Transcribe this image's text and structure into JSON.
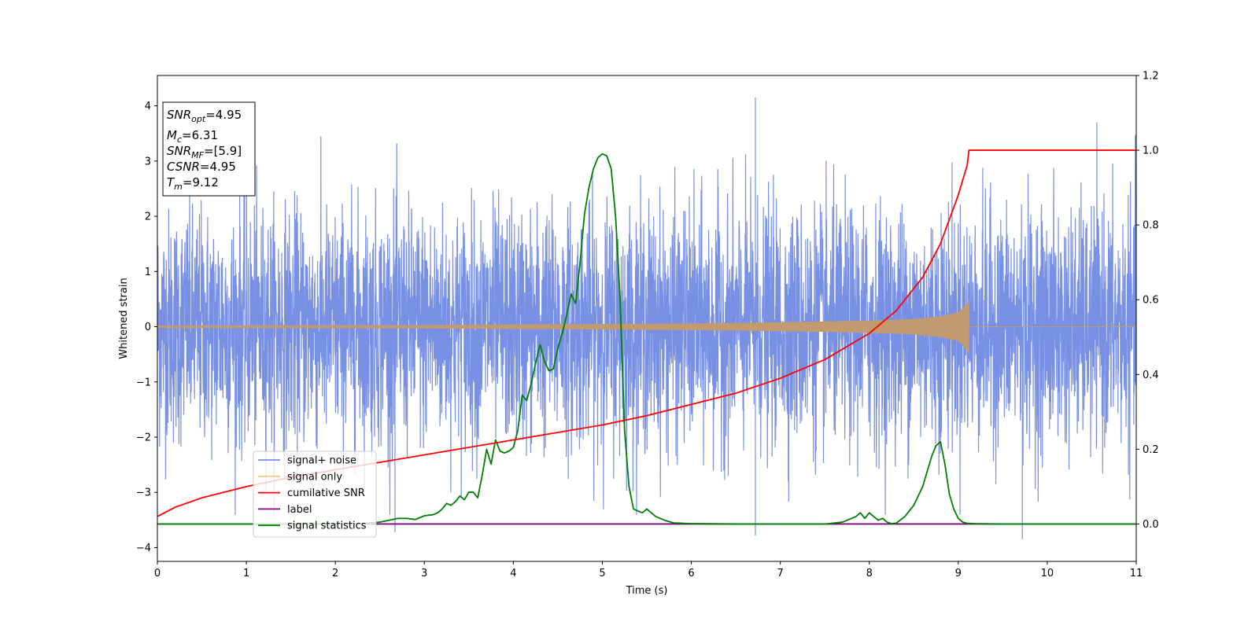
{
  "chart_data": {
    "type": "line",
    "xlabel": "Time (s)",
    "ylabel": "Whitened strain",
    "xlim": [
      0,
      11
    ],
    "ylim_left": [
      -4.25,
      4.55
    ],
    "ylim_right": [
      -0.1,
      1.2
    ],
    "x_ticks": [
      0,
      1,
      2,
      3,
      4,
      5,
      6,
      7,
      8,
      9,
      10,
      11
    ],
    "y_ticks_left": [
      -4,
      -3,
      -2,
      -1,
      0,
      1,
      2,
      3,
      4
    ],
    "y_ticks_left_labels": [
      "−4",
      "−3",
      "−2",
      "−1",
      "0",
      "1",
      "2",
      "3",
      "4"
    ],
    "y_ticks_right": [
      0.0,
      0.2,
      0.4,
      0.6,
      0.8,
      1.0,
      1.2
    ],
    "y_ticks_right_labels": [
      "0.0",
      "0.2",
      "0.4",
      "0.6",
      "0.8",
      "1.0",
      "1.2"
    ],
    "info_box": {
      "snr_opt": {
        "base": "SNR",
        "sub": "opt",
        "value": "=4.95"
      },
      "mc": {
        "base": "M",
        "sub": "c",
        "value": "=6.31"
      },
      "snr_mf": {
        "base": "SNR",
        "sub": "MF",
        "value": "=[5.9]"
      },
      "csnr": {
        "base": "CSNR",
        "value": "=4.95"
      },
      "tm": {
        "base": "T",
        "sub": "m",
        "value": "=9.12"
      }
    },
    "legend": {
      "placement": "lower-left",
      "entries": [
        {
          "label": "signal+ noise",
          "color": "#7890e4"
        },
        {
          "label": "signal only",
          "color": "#f5c98a"
        },
        {
          "label": "cumilative SNR",
          "color": "#ff0000"
        },
        {
          "label": "label",
          "color": "#800080"
        },
        {
          "label": "signal statistics",
          "color": "#008000"
        }
      ]
    },
    "series": [
      {
        "name": "signal+ noise",
        "axis": "left",
        "color": "#7890e4",
        "description_points": "dense gaussian noise, std ~1, spikes up to ~4.15 and down to ~-3.85",
        "notable_extremes": [
          [
            6.72,
            4.15
          ],
          [
            9.72,
            -3.85
          ],
          [
            6.72,
            -3.78
          ],
          [
            2.67,
            -3.72
          ]
        ]
      },
      {
        "name": "signal only",
        "axis": "left",
        "color": "#f5c98a",
        "envelope": {
          "x": [
            0,
            3,
            5,
            6,
            7,
            8,
            8.5,
            8.8,
            9.0,
            9.1,
            9.12,
            11
          ],
          "amp": [
            0.02,
            0.03,
            0.05,
            0.06,
            0.08,
            0.11,
            0.14,
            0.19,
            0.26,
            0.42,
            0.5,
            0
          ]
        }
      },
      {
        "name": "cumilative SNR",
        "axis": "right",
        "color": "#ff0000",
        "x": [
          0,
          0.2,
          0.5,
          1,
          1.5,
          2,
          2.5,
          3,
          3.5,
          4,
          4.5,
          5,
          5.5,
          6,
          6.5,
          7,
          7.5,
          8,
          8.3,
          8.6,
          8.8,
          9.0,
          9.1,
          9.12,
          9.2,
          11
        ],
        "y": [
          0.02,
          0.045,
          0.07,
          0.1,
          0.125,
          0.145,
          0.165,
          0.185,
          0.205,
          0.225,
          0.245,
          0.265,
          0.29,
          0.32,
          0.35,
          0.39,
          0.44,
          0.51,
          0.57,
          0.66,
          0.75,
          0.88,
          0.96,
          1.0,
          1.0,
          1.0
        ]
      },
      {
        "name": "label",
        "axis": "right",
        "color": "#800080",
        "x": [
          0,
          11
        ],
        "y": [
          0,
          0
        ]
      },
      {
        "name": "signal statistics",
        "axis": "right",
        "color": "#008000",
        "x": [
          0,
          0.5,
          1,
          1.5,
          2,
          2.3,
          2.5,
          2.6,
          2.7,
          2.8,
          2.9,
          3.0,
          3.1,
          3.15,
          3.2,
          3.25,
          3.3,
          3.35,
          3.4,
          3.45,
          3.5,
          3.55,
          3.6,
          3.65,
          3.7,
          3.75,
          3.8,
          3.85,
          3.9,
          3.95,
          4.0,
          4.05,
          4.1,
          4.15,
          4.2,
          4.25,
          4.3,
          4.35,
          4.4,
          4.45,
          4.5,
          4.55,
          4.6,
          4.65,
          4.7,
          4.75,
          4.8,
          4.85,
          4.9,
          4.95,
          5.0,
          5.05,
          5.1,
          5.15,
          5.2,
          5.25,
          5.3,
          5.35,
          5.4,
          5.45,
          5.5,
          5.55,
          5.6,
          5.7,
          5.8,
          5.9,
          6.0,
          6.5,
          7.0,
          7.5,
          7.7,
          7.8,
          7.85,
          7.9,
          7.95,
          8.0,
          8.05,
          8.1,
          8.15,
          8.2,
          8.25,
          8.3,
          8.4,
          8.5,
          8.6,
          8.7,
          8.75,
          8.8,
          8.85,
          8.9,
          8.95,
          9.0,
          9.05,
          9.1,
          9.2,
          9.5,
          10,
          11
        ],
        "y": [
          0,
          0,
          0,
          0,
          0,
          0.001,
          0.005,
          0.01,
          0.015,
          0.015,
          0.012,
          0.022,
          0.025,
          0.03,
          0.04,
          0.055,
          0.05,
          0.06,
          0.075,
          0.065,
          0.085,
          0.085,
          0.07,
          0.13,
          0.2,
          0.16,
          0.225,
          0.195,
          0.19,
          0.195,
          0.205,
          0.25,
          0.345,
          0.33,
          0.375,
          0.43,
          0.48,
          0.435,
          0.41,
          0.415,
          0.47,
          0.51,
          0.56,
          0.615,
          0.59,
          0.7,
          0.83,
          0.9,
          0.95,
          0.98,
          0.99,
          0.985,
          0.95,
          0.82,
          0.6,
          0.25,
          0.1,
          0.04,
          0.035,
          0.03,
          0.04,
          0.03,
          0.02,
          0.01,
          0.003,
          0.002,
          0.001,
          0,
          0,
          0,
          0.005,
          0.015,
          0.02,
          0.03,
          0.015,
          0.03,
          0.02,
          0.01,
          0.015,
          0.005,
          0.001,
          0.002,
          0.02,
          0.05,
          0.1,
          0.18,
          0.21,
          0.22,
          0.16,
          0.08,
          0.04,
          0.015,
          0.005,
          0.002,
          0.001,
          0,
          0,
          0
        ]
      }
    ]
  }
}
